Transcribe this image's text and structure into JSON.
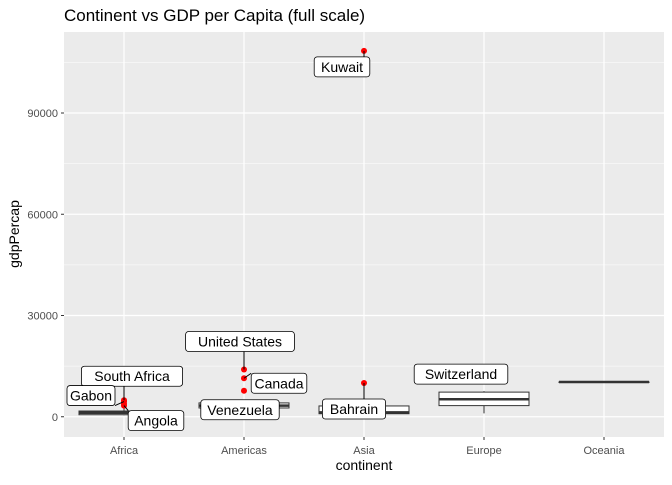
{
  "chart_data": {
    "type": "boxplot",
    "title": "Continent vs GDP per Capita (full scale)",
    "xlabel": "continent",
    "ylabel": "gdpPercap",
    "ylim": [
      -6000,
      114000
    ],
    "yticks": [
      0,
      30000,
      60000,
      90000
    ],
    "ytick_labels": [
      "0",
      "30000",
      "60000",
      "90000"
    ],
    "grid": true,
    "colors": {
      "panel": "#EBEBEB",
      "grid": "#FFFFFF",
      "outlier": "#FF0000",
      "box_line": "#333333",
      "box_fill": "#FFFFFF"
    },
    "categories": [
      "Africa",
      "Americas",
      "Asia",
      "Europe",
      "Oceania"
    ],
    "boxes": [
      {
        "category": "Africa",
        "q1": 600,
        "median": 1200,
        "q3": 1700,
        "whisker_low": 400,
        "whisker_high": 2600
      },
      {
        "category": "Americas",
        "q1": 2600,
        "median": 3300,
        "q3": 4100,
        "whisker_low": 2500,
        "whisker_high": 4300
      },
      {
        "category": "Asia",
        "q1": 900,
        "median": 1300,
        "q3": 3200,
        "whisker_low": 300,
        "whisker_high": 3400
      },
      {
        "category": "Europe",
        "q1": 3300,
        "median": 5200,
        "q3": 7300,
        "whisker_low": 1000,
        "whisker_high": 7600
      },
      {
        "category": "Oceania",
        "q1": 10300,
        "median": 10300,
        "q3": 10300,
        "whisker_low": 10300,
        "whisker_high": 10300
      }
    ],
    "outliers": [
      {
        "category": "Africa",
        "value": 4900
      },
      {
        "category": "Africa",
        "value": 4500
      },
      {
        "category": "Africa",
        "value": 3800
      },
      {
        "category": "Africa",
        "value": 3300
      },
      {
        "category": "Americas",
        "value": 14000
      },
      {
        "category": "Americas",
        "value": 11400
      },
      {
        "category": "Americas",
        "value": 7700
      },
      {
        "category": "Asia",
        "value": 108400
      },
      {
        "category": "Asia",
        "value": 10000
      },
      {
        "category": "Europe",
        "value": 14700
      }
    ],
    "annotations": [
      {
        "label": "Kuwait",
        "category": "Asia",
        "value": 108400
      },
      {
        "label": "Bahrain",
        "category": "Asia",
        "value": 10000
      },
      {
        "label": "Switzerland",
        "category": "Europe",
        "value": 14700
      },
      {
        "label": "United States",
        "category": "Americas",
        "value": 14000
      },
      {
        "label": "Canada",
        "category": "Americas",
        "value": 11400
      },
      {
        "label": "Venezuela",
        "category": "Americas",
        "value": 7700
      },
      {
        "label": "South Africa",
        "category": "Africa",
        "value": 4900
      },
      {
        "label": "Gabon",
        "category": "Africa",
        "value": 4500
      },
      {
        "label": "Angola",
        "category": "Africa",
        "value": 3300
      }
    ]
  }
}
